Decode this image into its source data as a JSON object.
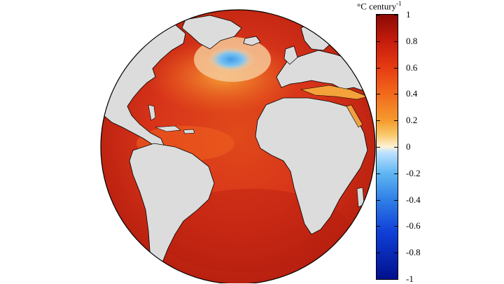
{
  "colorbar": {
    "title_main": "°C century",
    "title_exp": "-1",
    "range": [
      -1,
      1
    ],
    "ticks": [
      {
        "value": 1,
        "label": "1"
      },
      {
        "value": 0.8,
        "label": "0.8"
      },
      {
        "value": 0.6,
        "label": "0.6"
      },
      {
        "value": 0.4,
        "label": "0.4"
      },
      {
        "value": 0.2,
        "label": "0.2"
      },
      {
        "value": 0,
        "label": "0"
      },
      {
        "value": -0.2,
        "label": "-0.2"
      },
      {
        "value": -0.4,
        "label": "-0.4"
      },
      {
        "value": -0.6,
        "label": "-0.6"
      },
      {
        "value": -0.8,
        "label": "-0.8"
      },
      {
        "value": -1,
        "label": "-1"
      }
    ],
    "colors": {
      "max": "#8a0a05",
      "zero": "#fff2d6",
      "min": "#00108c"
    }
  },
  "map": {
    "land_color": "#dcdcdc",
    "ocean_color": "#d8341a",
    "cold_anomaly_color": "#5fb6f2"
  }
}
